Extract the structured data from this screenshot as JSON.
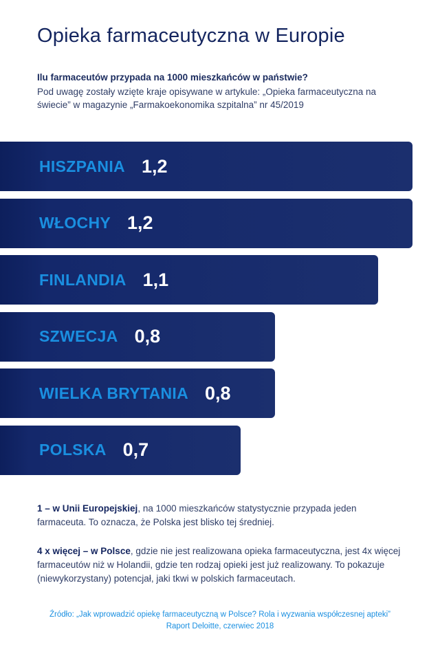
{
  "title": "Opieka farmaceutyczna w Europie",
  "subtitle": "Ilu farmaceutów przypada na 1000 mieszkańców w państwie?",
  "note": "Pod uwagę zostały wzięte kraje opisywane w artykule: „Opieka farmaceutyczna na świecie” w magazynie „Farmakoekonomika szpitalna” nr 45/2019",
  "chart_data": {
    "type": "bar",
    "orientation": "horizontal",
    "title": "Opieka farmaceutyczna w Europie",
    "categories": [
      "HISZPANIA",
      "WŁOCHY",
      "FINLANDIA",
      "SZWECJA",
      "WIELKA BRYTANIA",
      "POLSKA"
    ],
    "values": [
      1.2,
      1.2,
      1.1,
      0.8,
      0.8,
      0.7
    ],
    "value_labels": [
      "1,2",
      "1,2",
      "1,1",
      "0,8",
      "0,8",
      "0,7"
    ],
    "xlim": [
      0,
      1.2
    ],
    "grid": false,
    "legend": "none",
    "colors": {
      "bar": "#14286b",
      "label": "#1a8fe0",
      "value": "#ffffff"
    }
  },
  "facts": [
    {
      "bold": "1 – w Unii Europejskiej",
      "text": ", na 1000 mieszkańców statystycznie przypada jeden farmaceuta. To oznacza, że Polska jest blisko tej średniej."
    },
    {
      "bold": "4 x więcej – w Polsce",
      "text": ", gdzie nie jest realizowana opieka farmaceutyczna, jest 4x więcej farmaceutów niż w Holandii, gdzie ten rodzaj opieki jest już realizowany. To pokazuje (niewykorzystany) potencjał, jaki tkwi w polskich farmaceutach."
    }
  ],
  "source": "Źródło: „Jak wprowadzić opiekę farmaceutyczną w Polsce? Rola i wyzwania współczesnej apteki” Raport Deloitte, czerwiec 2018"
}
